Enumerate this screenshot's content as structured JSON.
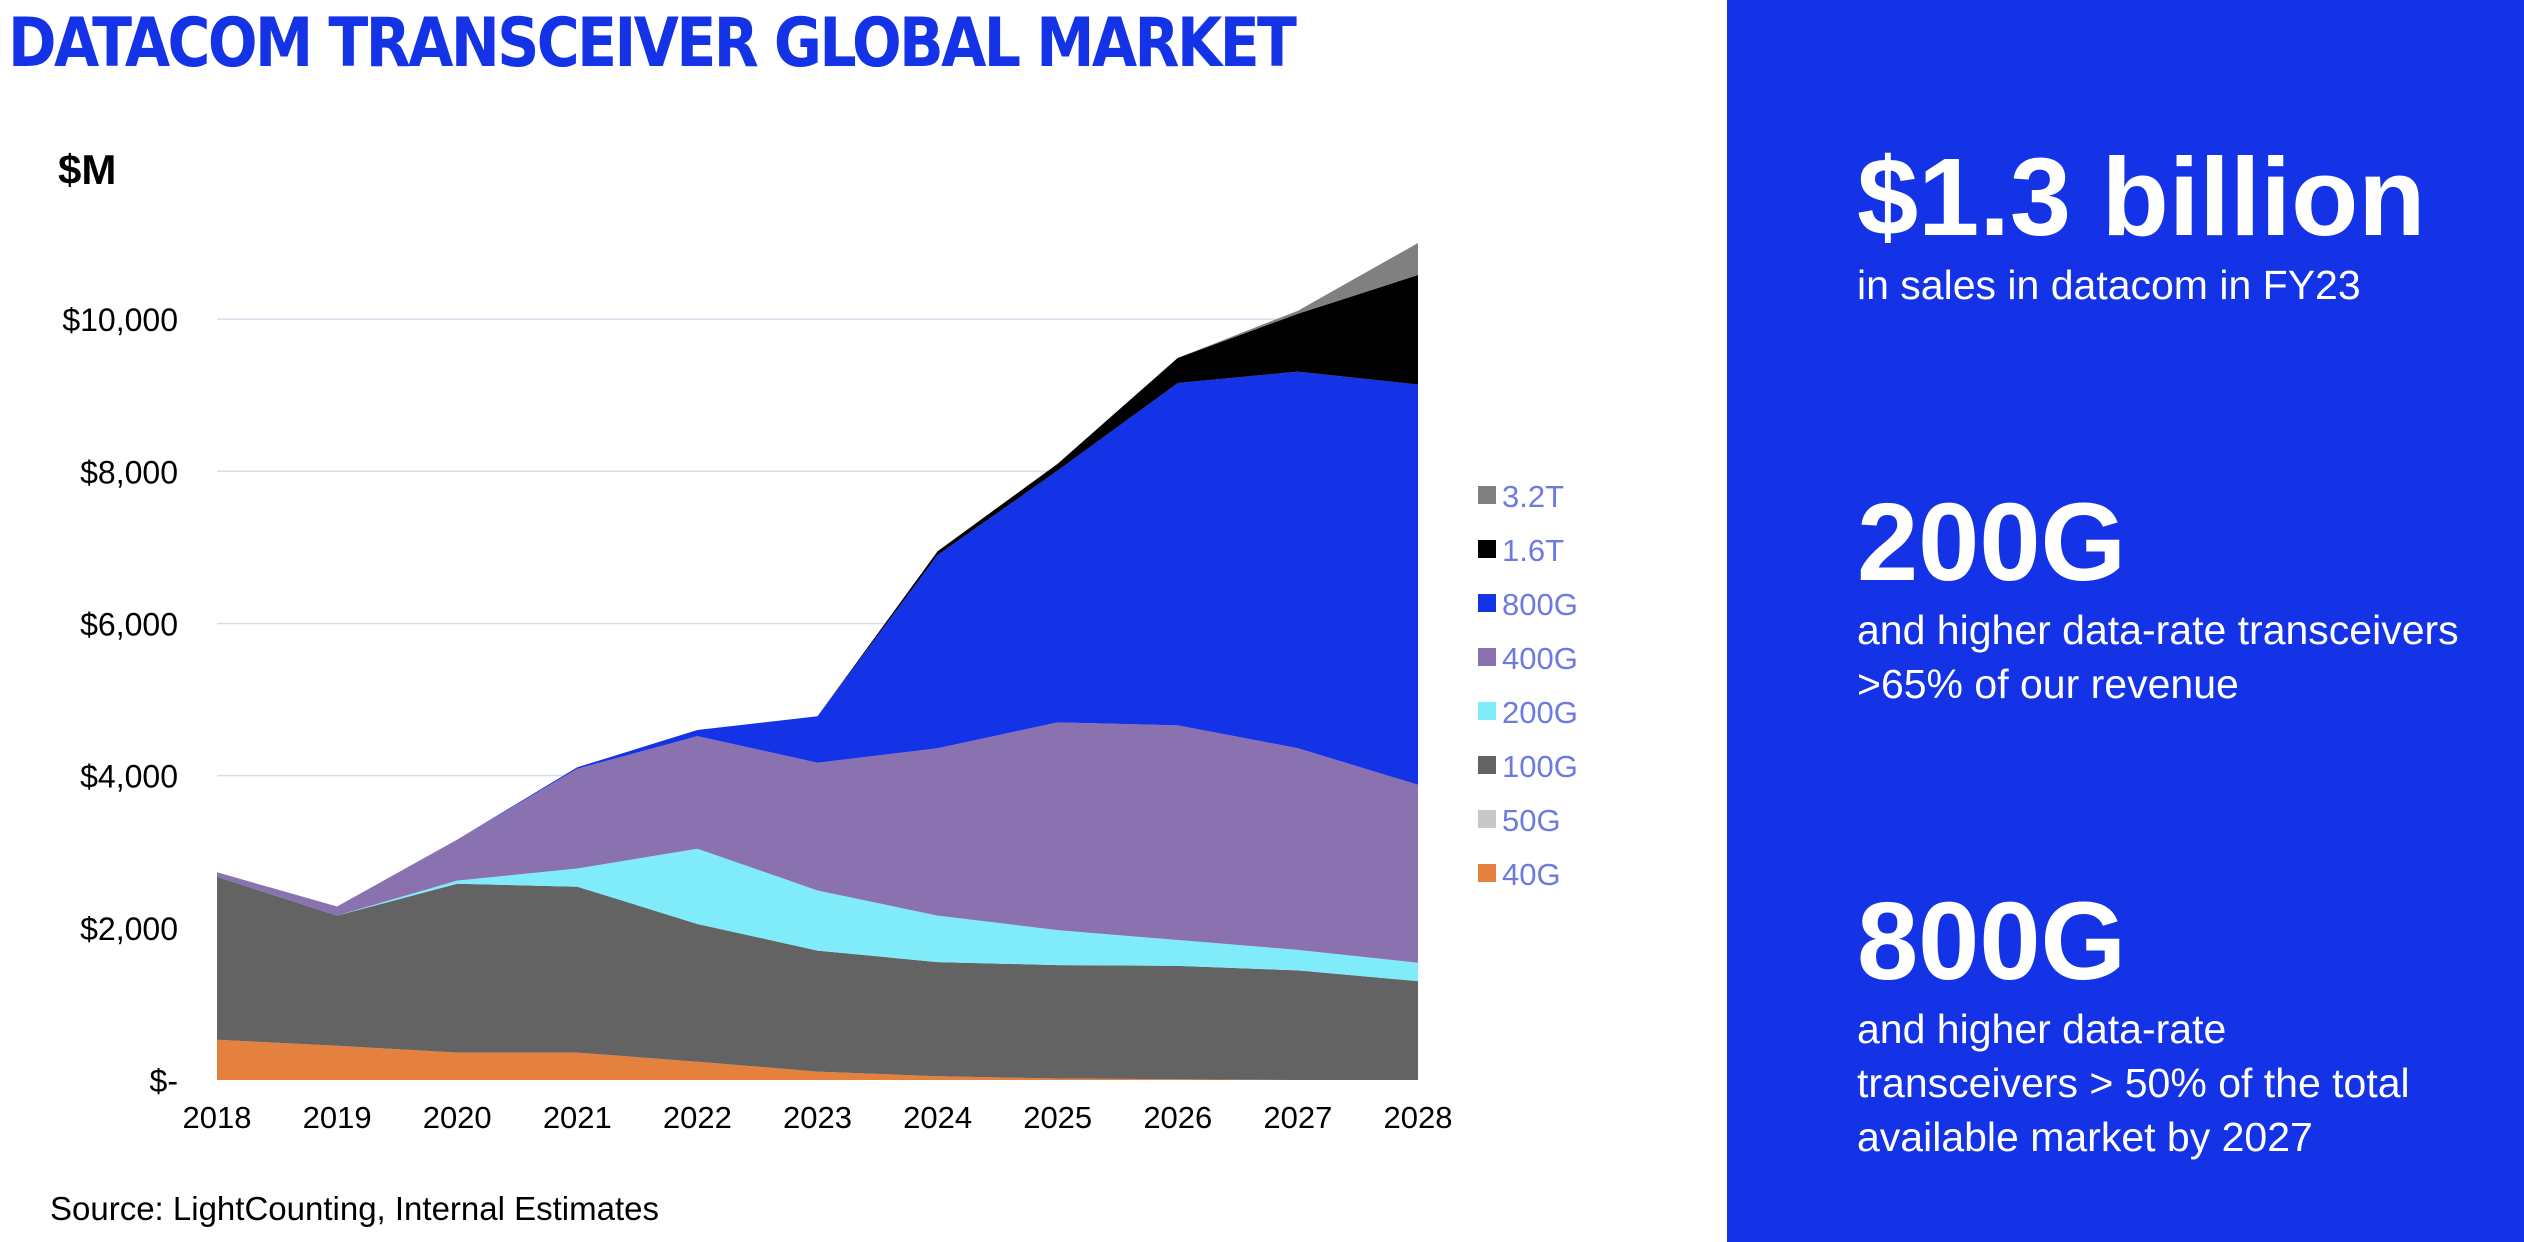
{
  "title": "DATACOM TRANSCEIVER GLOBAL MARKET",
  "unit_label": "$M",
  "source": "Source: LightCounting, Internal Estimates",
  "colors": {
    "brand": "#1432e6",
    "40G": "#e5813e",
    "50G": "#c8c8c8",
    "100G": "#636363",
    "200G": "#80ecfa",
    "400G": "#8a72b1",
    "800G": "#1432e6",
    "1.6T": "#000000",
    "3.2T": "#808080"
  },
  "stats": [
    {
      "headline": "$1.3 billion",
      "lines": [
        "in sales in datacom in FY23"
      ]
    },
    {
      "headline": "200G",
      "lines": [
        "and higher data-rate transceivers",
        ">65% of our revenue"
      ]
    },
    {
      "headline": "800G",
      "lines": [
        "and higher data-rate",
        "transceivers > 50% of the total",
        "available market by 2027"
      ]
    }
  ],
  "chart_data": {
    "type": "area",
    "stacked": true,
    "categories": [
      "2018",
      "2019",
      "2020",
      "2021",
      "2022",
      "2023",
      "2024",
      "2025",
      "2026",
      "2027",
      "2028"
    ],
    "y_ticks": [
      0,
      2000,
      4000,
      6000,
      8000,
      10000
    ],
    "y_tick_labels": [
      "$-",
      "$2,000",
      "$4,000",
      "$6,000",
      "$8,000",
      "$10,000"
    ],
    "ylim": [
      0,
      11000
    ],
    "ylabel": "$M",
    "grid": true,
    "legend_position": "right",
    "legend_order": [
      "3.2T",
      "1.6T",
      "800G",
      "400G",
      "200G",
      "100G",
      "50G",
      "40G"
    ],
    "series": [
      {
        "name": "40G",
        "values": [
          530,
          450,
          360,
          360,
          240,
          110,
          50,
          20,
          10,
          0,
          0
        ]
      },
      {
        "name": "50G",
        "values": [
          0,
          0,
          0,
          0,
          0,
          0,
          0,
          0,
          0,
          0,
          0
        ]
      },
      {
        "name": "100G",
        "values": [
          2140,
          1710,
          2220,
          2180,
          1810,
          1590,
          1500,
          1490,
          1490,
          1440,
          1300
        ]
      },
      {
        "name": "200G",
        "values": [
          0,
          0,
          40,
          240,
          990,
          790,
          610,
          460,
          340,
          270,
          240
        ]
      },
      {
        "name": "400G",
        "values": [
          60,
          120,
          540,
          1310,
          1480,
          1680,
          2200,
          2730,
          2820,
          2650,
          2340
        ]
      },
      {
        "name": "800G",
        "values": [
          0,
          0,
          0,
          20,
          80,
          610,
          2540,
          3310,
          4500,
          4950,
          5260
        ]
      },
      {
        "name": "1.6T",
        "values": [
          0,
          0,
          0,
          0,
          0,
          0,
          50,
          90,
          330,
          760,
          1440
        ]
      },
      {
        "name": "3.2T",
        "values": [
          0,
          0,
          0,
          0,
          0,
          0,
          0,
          0,
          0,
          40,
          420
        ]
      }
    ]
  }
}
